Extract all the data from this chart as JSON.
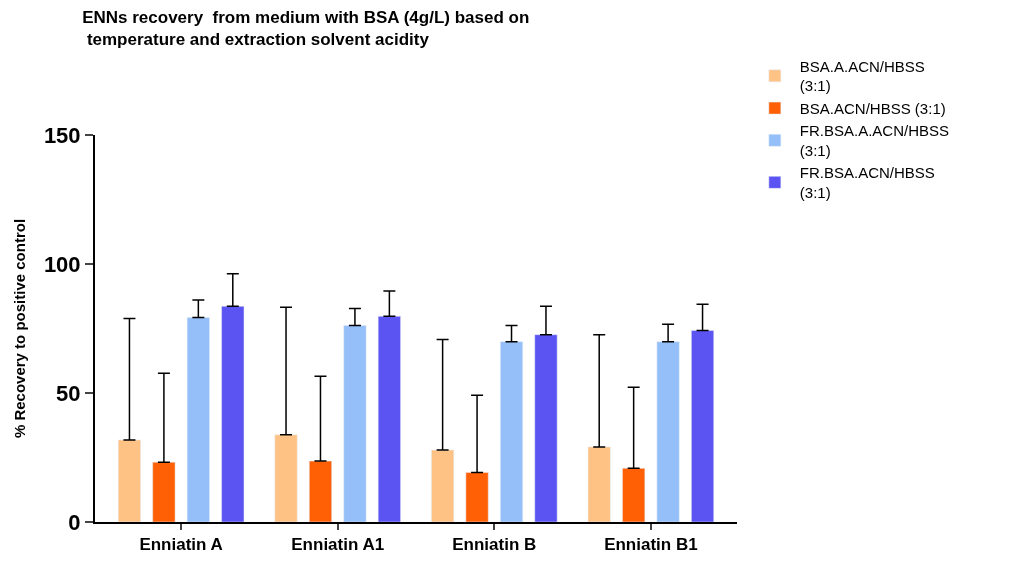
{
  "chart_data": {
    "type": "bar",
    "title": "ENNs recovery  from medium with BSA (4g/L) based on\n temperature and extraction solvent acidity",
    "ylabel": "% Recovery to positive control",
    "categories": [
      "Enniatin A",
      "Enniatin A1",
      "Enniatin B",
      "Enniatin B1"
    ],
    "series": [
      {
        "name": "BSA.A.ACN/HBSS (3:1)",
        "color": "#ffc285",
        "values": [
          31.8,
          33.8,
          27.9,
          29.1
        ],
        "errors": [
          [
            31.8,
            78.9
          ],
          [
            33.8,
            83.2
          ],
          [
            27.9,
            70.7
          ],
          [
            29.1,
            72.6
          ]
        ]
      },
      {
        "name": "BSA.ACN/HBSS (3:1)",
        "color": "#ff6005",
        "values": [
          23.2,
          23.6,
          19.2,
          20.8
        ],
        "errors": [
          [
            23.2,
            57.7
          ],
          [
            23.6,
            56.5
          ],
          [
            19.2,
            49.1
          ],
          [
            20.8,
            52.2
          ]
        ]
      },
      {
        "name": "FR.BSA.A.ACN/HBSS (3:1)",
        "color": "#94bff8",
        "values": [
          79.3,
          76.2,
          69.9,
          69.9
        ],
        "errors": [
          [
            79.3,
            86.0
          ],
          [
            76.2,
            82.8
          ],
          [
            69.9,
            76.2
          ],
          [
            69.9,
            76.6
          ]
        ]
      },
      {
        "name": "FR.BSA.ACN/HBSS (3:1)",
        "color": "#5b53f2",
        "values": [
          83.6,
          79.7,
          72.6,
          74.2
        ],
        "errors": [
          [
            83.6,
            96.2
          ],
          [
            79.7,
            89.5
          ],
          [
            72.6,
            83.6
          ],
          [
            74.2,
            84.4
          ]
        ]
      }
    ],
    "ylim": [
      0,
      150
    ],
    "yticks": [
      0,
      50,
      100,
      150
    ],
    "legend": "top right"
  }
}
